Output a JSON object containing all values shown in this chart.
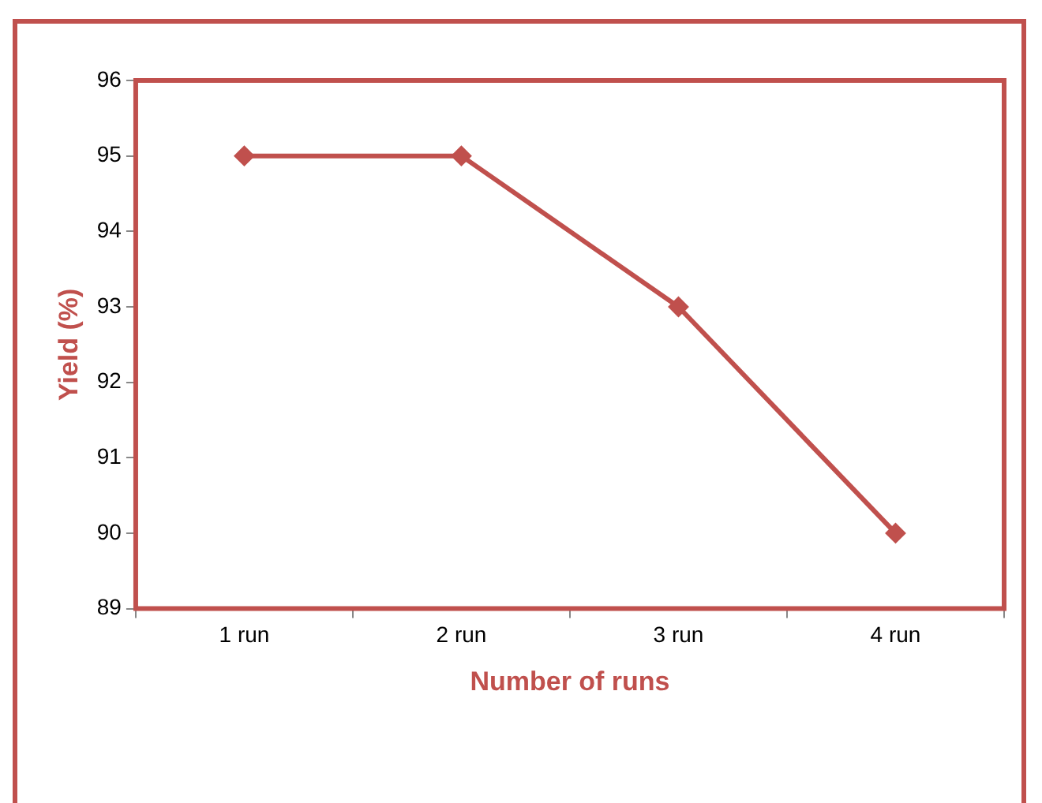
{
  "chart_data": {
    "type": "line",
    "xlabel": "Number of runs",
    "ylabel": "Yield (%)",
    "categories": [
      "1 run",
      "2 run",
      "3 run",
      "4 run"
    ],
    "series": [
      {
        "color": "#c0504d",
        "values": [
          95,
          95,
          93,
          90
        ]
      }
    ],
    "ylim": [
      89,
      96
    ],
    "yticks": [
      89,
      90,
      91,
      92,
      93,
      94,
      95,
      96
    ],
    "grid": false,
    "legend": false,
    "marker": "diamond",
    "line_style": "solid"
  }
}
